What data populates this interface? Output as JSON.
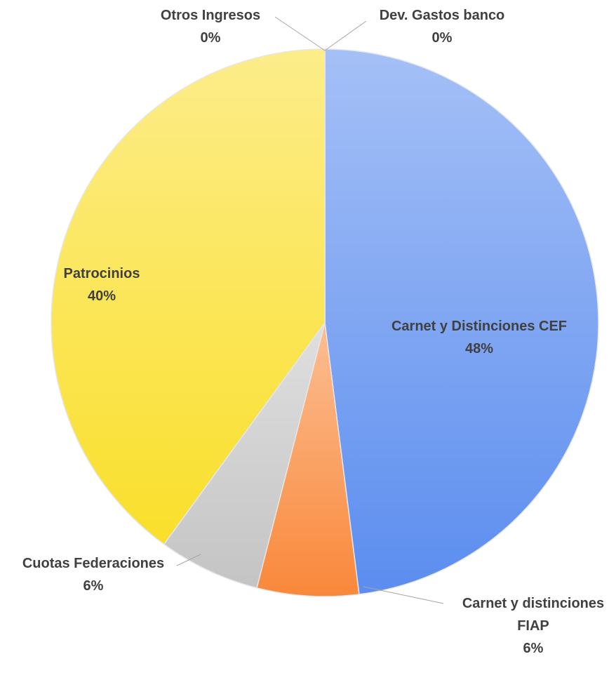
{
  "chart_data": {
    "type": "pie",
    "categories": [
      "Dev. Gastos banco",
      "Carnet y Distinciones CEF",
      "Carnet y distinciones FIAP",
      "Cuotas Federaciones",
      "Patrocinios",
      "Otros Ingresos"
    ],
    "values": [
      0,
      48,
      6,
      6,
      40,
      0
    ],
    "value_labels": [
      "0%",
      "48%",
      "6%",
      "6%",
      "40%",
      "0%"
    ],
    "colors": [
      "#4f81bd",
      "#5b8def",
      "#f9883a",
      "#c4c4c4",
      "#fadf2a",
      "#a0a0a0"
    ]
  }
}
